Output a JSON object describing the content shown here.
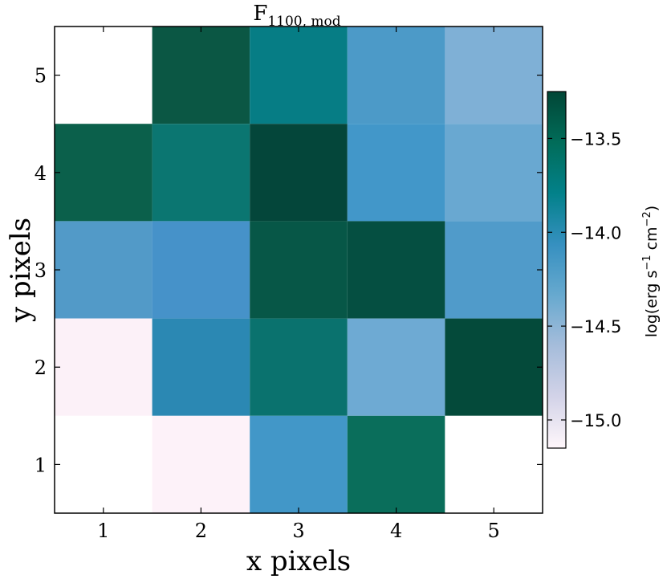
{
  "chart_data": {
    "type": "heatmap",
    "title": "F",
    "title_subscript": "1100, mod",
    "xlabel": "x pixels",
    "ylabel": "y pixels",
    "x_ticks": [
      "1",
      "2",
      "3",
      "4",
      "5"
    ],
    "y_ticks": [
      "1",
      "2",
      "3",
      "4",
      "5"
    ],
    "xlim": [
      0.5,
      5.5
    ],
    "ylim": [
      0.5,
      5.5
    ],
    "cells": [
      {
        "x": 1,
        "y": 5,
        "color": "#ffffff"
      },
      {
        "x": 2,
        "y": 5,
        "color": "#0b5744"
      },
      {
        "x": 3,
        "y": 5,
        "color": "#067d85"
      },
      {
        "x": 4,
        "y": 5,
        "color": "#4c9ac8"
      },
      {
        "x": 5,
        "y": 5,
        "color": "#7fb0d6"
      },
      {
        "x": 1,
        "y": 4,
        "color": "#0b604b"
      },
      {
        "x": 2,
        "y": 4,
        "color": "#0b7671"
      },
      {
        "x": 3,
        "y": 4,
        "color": "#04463a"
      },
      {
        "x": 4,
        "y": 4,
        "color": "#4297c9"
      },
      {
        "x": 5,
        "y": 4,
        "color": "#69a8d1"
      },
      {
        "x": 1,
        "y": 3,
        "color": "#529ac8"
      },
      {
        "x": 2,
        "y": 3,
        "color": "#4692c9"
      },
      {
        "x": 3,
        "y": 3,
        "color": "#075747"
      },
      {
        "x": 4,
        "y": 3,
        "color": "#054f41"
      },
      {
        "x": 5,
        "y": 3,
        "color": "#509bca"
      },
      {
        "x": 1,
        "y": 2,
        "color": "#fcf1f8"
      },
      {
        "x": 2,
        "y": 2,
        "color": "#2b88b3"
      },
      {
        "x": 3,
        "y": 2,
        "color": "#0a726e"
      },
      {
        "x": 4,
        "y": 2,
        "color": "#6eaad3"
      },
      {
        "x": 5,
        "y": 2,
        "color": "#044a3a"
      },
      {
        "x": 1,
        "y": 1,
        "color": "#ffffff"
      },
      {
        "x": 2,
        "y": 1,
        "color": "#fdf2f9"
      },
      {
        "x": 3,
        "y": 1,
        "color": "#4297c8"
      },
      {
        "x": 4,
        "y": 1,
        "color": "#0a6e5b"
      },
      {
        "x": 5,
        "y": 1,
        "color": "#ffffff"
      }
    ],
    "colorbar": {
      "label": "log(erg s",
      "label_exp1": "−1",
      "label_mid": " cm",
      "label_exp2": "−2",
      "label_end": ")",
      "range": [
        -15.15,
        -13.25
      ],
      "ticks": [
        {
          "value": -13.5,
          "label": "−13.5"
        },
        {
          "value": -14.0,
          "label": "−14.0"
        },
        {
          "value": -14.5,
          "label": "−14.5"
        },
        {
          "value": -15.0,
          "label": "−15.0"
        }
      ],
      "colors": [
        "#fff7fb",
        "#d3d3e8",
        "#a6bddb",
        "#67a9cf",
        "#3690c0",
        "#02818a",
        "#016c59",
        "#014636"
      ]
    },
    "grid": false
  }
}
